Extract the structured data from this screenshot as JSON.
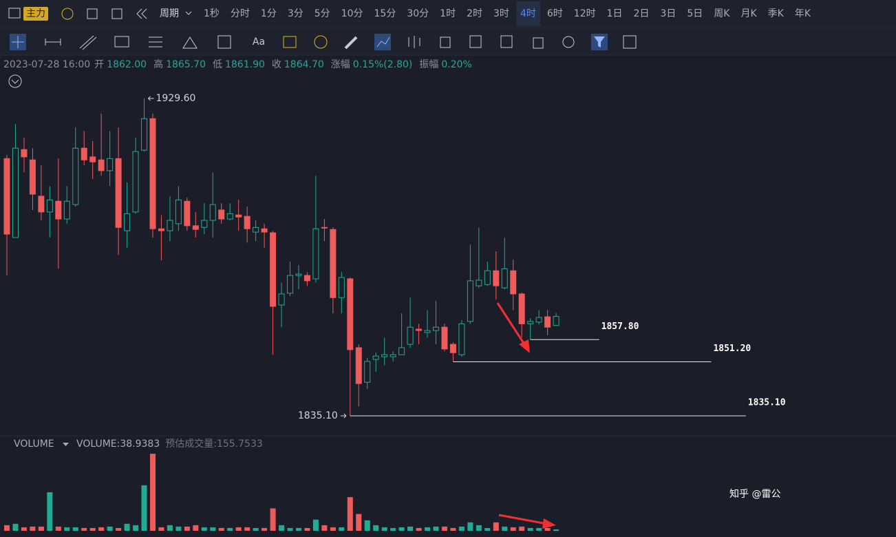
{
  "toolbar": {
    "indicator": "主力",
    "period_label": "周期",
    "intervals": [
      "1秒",
      "分时",
      "1分",
      "3分",
      "5分",
      "10分",
      "15分",
      "30分",
      "1时",
      "2时",
      "3时",
      "4时",
      "6时",
      "12时",
      "1日",
      "2日",
      "3日",
      "5日",
      "周K",
      "月K",
      "季K",
      "年K"
    ],
    "active_interval": "4时",
    "text_tool": "Aa"
  },
  "info_bar": {
    "datetime": "2023-07-28 16:00",
    "fields": [
      {
        "label": "开",
        "value": "1862.00"
      },
      {
        "label": "高",
        "value": "1865.70"
      },
      {
        "label": "低",
        "value": "1861.90"
      },
      {
        "label": "收",
        "value": "1864.70"
      },
      {
        "label": "涨幅",
        "value": "0.15%(2.80)"
      },
      {
        "label": "振幅",
        "value": "0.20%"
      }
    ]
  },
  "chart_data": {
    "type": "candlestick",
    "up_color": "#22ab94",
    "down_color": "#ee5b5b",
    "open": [
      1911.7,
      1888.2,
      1914.4,
      1911.3,
      1900.5,
      1895.8,
      1899.0,
      1893.7,
      1898.0,
      1914.8,
      1912.2,
      1911.3,
      1908.1,
      1911.7,
      1890.2,
      1895.8,
      1914.2,
      1923.6,
      1890.8,
      1890.2,
      1892.3,
      1899.0,
      1891.7,
      1891.2,
      1893.3,
      1896.4,
      1893.7,
      1894.9,
      1894.5,
      1889.8,
      1890.8,
      1889.6,
      1868.1,
      1871.6,
      1876.9,
      1876.9,
      1875.9,
      1891.2,
      1890.6,
      1870.3,
      1875.9,
      1855.4,
      1845.1,
      1851.9,
      1852.7,
      1852.7,
      1853.3,
      1856.4,
      1860.9,
      1859.9,
      1860.5,
      1861.5,
      1856.4,
      1853.3,
      1863.2,
      1873.8,
      1874.2,
      1878.3,
      1873.2,
      1878.3,
      1871.4,
      1862.5,
      1863.0,
      1864.6,
      1862.0
    ],
    "high": [
      1912.8,
      1922.0,
      1917.9,
      1914.8,
      1909.7,
      1903.5,
      1911.7,
      1903.5,
      1921.0,
      1919.9,
      1916.9,
      1925.1,
      1919.9,
      1921.0,
      1904.6,
      1917.9,
      1929.6,
      1925.1,
      1894.9,
      1900.5,
      1903.5,
      1900.1,
      1895.8,
      1898.4,
      1907.6,
      1898.4,
      1898.4,
      1899.4,
      1897.4,
      1893.3,
      1892.3,
      1890.2,
      1874.8,
      1881.0,
      1880.0,
      1877.9,
      1906.6,
      1893.7,
      1891.2,
      1877.9,
      1876.3,
      1856.4,
      1852.3,
      1853.9,
      1858.4,
      1854.3,
      1865.6,
      1870.3,
      1862.5,
      1866.6,
      1869.3,
      1862.5,
      1857.0,
      1863.6,
      1886.1,
      1891.2,
      1881.0,
      1884.1,
      1888.2,
      1881.6,
      1871.8,
      1864.2,
      1866.6,
      1866.6,
      1865.7
    ],
    "low": [
      1876.9,
      1888.2,
      1907.6,
      1896.4,
      1893.3,
      1888.2,
      1878.9,
      1892.3,
      1897.4,
      1909.7,
      1905.6,
      1906.6,
      1903.5,
      1883.0,
      1885.1,
      1895.3,
      1913.8,
      1888.2,
      1881.4,
      1887.1,
      1890.2,
      1890.2,
      1888.2,
      1889.2,
      1888.2,
      1892.3,
      1893.3,
      1890.2,
      1886.7,
      1887.1,
      1885.1,
      1853.3,
      1861.5,
      1870.7,
      1872.8,
      1873.8,
      1874.8,
      1887.1,
      1865.6,
      1865.6,
      1835.1,
      1837.9,
      1843.1,
      1848.2,
      1850.2,
      1851.3,
      1853.3,
      1855.4,
      1856.4,
      1858.4,
      1856.4,
      1854.3,
      1851.2,
      1852.7,
      1862.5,
      1873.2,
      1873.8,
      1869.7,
      1872.8,
      1866.6,
      1858.4,
      1857.8,
      1862.3,
      1859.1,
      1861.9
    ],
    "close": [
      1889.2,
      1914.8,
      1912.2,
      1901.1,
      1895.8,
      1899.4,
      1893.7,
      1899.0,
      1914.8,
      1911.3,
      1910.7,
      1908.1,
      1911.7,
      1891.2,
      1895.3,
      1913.8,
      1923.6,
      1890.8,
      1890.2,
      1893.3,
      1899.4,
      1891.7,
      1890.6,
      1893.3,
      1898.0,
      1893.7,
      1895.3,
      1894.3,
      1890.8,
      1891.2,
      1889.8,
      1867.7,
      1871.4,
      1876.9,
      1877.3,
      1875.3,
      1890.8,
      1891.1,
      1870.3,
      1876.3,
      1854.8,
      1844.7,
      1851.3,
      1852.9,
      1853.3,
      1853.3,
      1855.4,
      1861.5,
      1860.5,
      1860.5,
      1861.5,
      1855.0,
      1853.9,
      1862.5,
      1875.3,
      1875.5,
      1878.3,
      1873.8,
      1878.9,
      1871.4,
      1862.5,
      1863.2,
      1864.4,
      1861.5,
      1864.7
    ],
    "volumes": [
      156,
      195,
      97.5,
      117,
      117,
      1072,
      117,
      97.5,
      97.5,
      78,
      78,
      97.5,
      117,
      78,
      195,
      156,
      1267,
      2145,
      97.5,
      156,
      117,
      117,
      156,
      97.5,
      97.5,
      78,
      78,
      97.5,
      97.5,
      78,
      78,
      624,
      156,
      78,
      78,
      78,
      312,
      156,
      97.5,
      97.5,
      936,
      468,
      292,
      156,
      97.5,
      78,
      97.5,
      117,
      78,
      97.5,
      117,
      117,
      78,
      117,
      234,
      156,
      78,
      234,
      117,
      97.5,
      117,
      78,
      78,
      78,
      38.9383
    ],
    "max_marker": {
      "value": 1929.6,
      "label": "1929.60"
    },
    "min_marker": {
      "value": 1835.1,
      "label": "1835.10"
    },
    "levels": [
      {
        "value": 1857.8,
        "label": "1857.80"
      },
      {
        "value": 1851.2,
        "label": "1851.20"
      },
      {
        "value": 1835.1,
        "label": "1835.10"
      }
    ],
    "volume_panel": {
      "title": "VOLUME",
      "readout_prefix": "VOLUME:",
      "estimate_prefix": "预估成交量:",
      "estimate": 155.7533
    }
  },
  "watermark": "知乎 @雷公"
}
